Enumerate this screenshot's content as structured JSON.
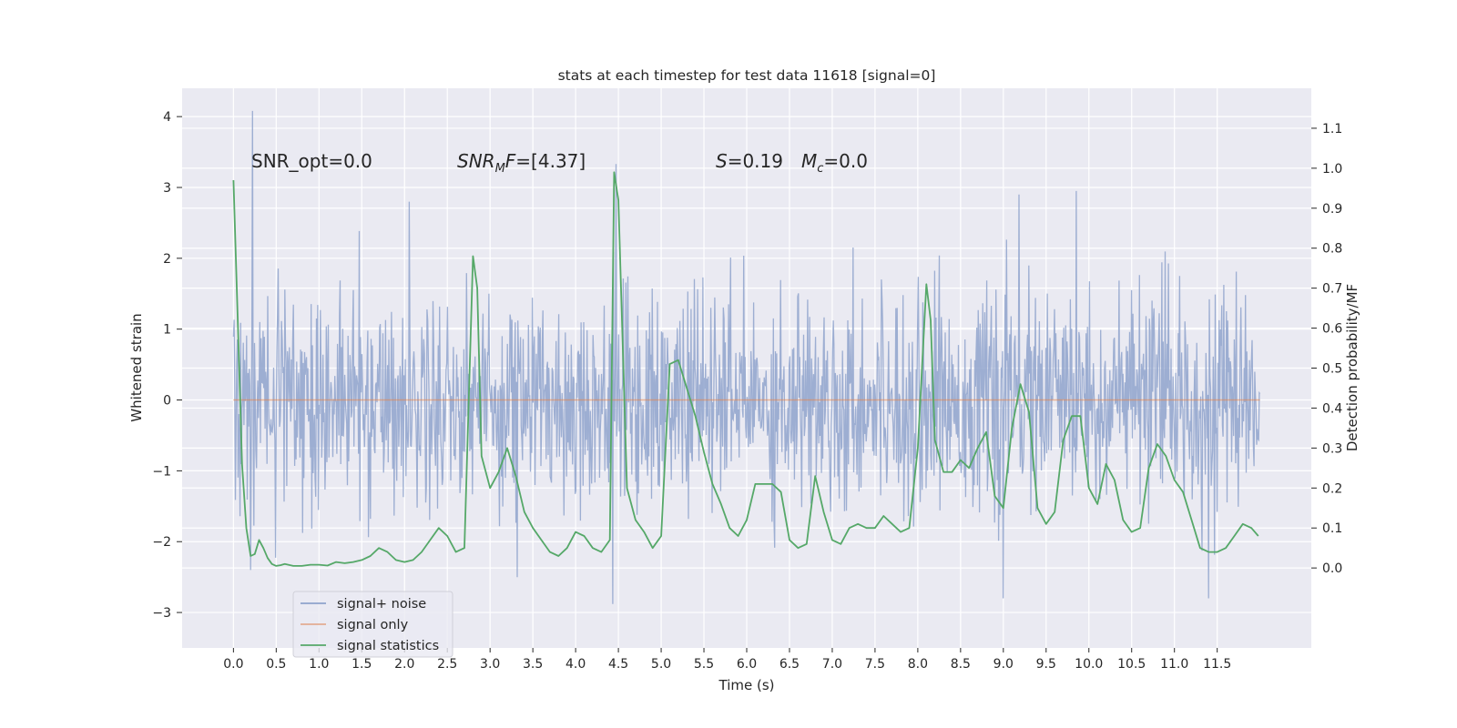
{
  "chart_data": {
    "type": "line",
    "title": "stats at each timestep for test data 11618 [signal=0]",
    "xlabel": "Time (s)",
    "ylabel": "Whitened strain",
    "ylabel_right": "Detection probability/MF",
    "xlim": [
      -0.6,
      12.6
    ],
    "ylim": [
      -3.5,
      4.4
    ],
    "ylim_right": [
      -0.2,
      1.2
    ],
    "xticks": [
      "0.0",
      "0.5",
      "1.0",
      "1.5",
      "2.0",
      "2.5",
      "3.0",
      "3.5",
      "4.0",
      "4.5",
      "5.0",
      "5.5",
      "6.0",
      "6.5",
      "7.0",
      "7.5",
      "8.0",
      "8.5",
      "9.0",
      "9.5",
      "10.0",
      "10.5",
      "11.0",
      "11.5"
    ],
    "yticks": [
      "−3",
      "−2",
      "−1",
      "0",
      "1",
      "2",
      "3",
      "4"
    ],
    "yticks_right": [
      "0.0",
      "0.1",
      "0.2",
      "0.3",
      "0.4",
      "0.5",
      "0.6",
      "0.7",
      "0.8",
      "0.9",
      "1.0",
      "1.1"
    ],
    "grid": true,
    "legend_position": "lower-left",
    "annotations": {
      "snr_opt": "SNR_opt=0.0",
      "snr_mf_name": "SNR",
      "snr_mf_sub": "M",
      "snr_mf_tail": "F",
      "snr_mf_value": "=[4.37]",
      "s_name": "S",
      "s_value": "=0.19",
      "mc_name": "M",
      "mc_sub": "c",
      "mc_value": "=0.0"
    },
    "series": [
      {
        "name": "signal+ noise",
        "color": "#8fa3cc",
        "axis": "left",
        "t_range": [
          0.0,
          12.0
        ],
        "sample_count": 1560,
        "approx_range": [
          -2.9,
          4.1
        ],
        "peaks": [
          [
            0.22,
            4.08
          ],
          [
            4.43,
            -2.88
          ],
          [
            4.47,
            3.33
          ],
          [
            3.32,
            -2.5
          ],
          [
            9.0,
            -2.8
          ],
          [
            9.18,
            2.9
          ],
          [
            9.85,
            2.95
          ],
          [
            11.4,
            -2.8
          ],
          [
            0.2,
            -2.4
          ]
        ]
      },
      {
        "name": "signal only",
        "color": "#dd8452",
        "axis": "left",
        "x": [
          0.0,
          12.0
        ],
        "y": [
          0.0,
          0.0
        ]
      },
      {
        "name": "signal statistics",
        "color": "#55a868",
        "axis": "right",
        "x": [
          0.0,
          0.05,
          0.1,
          0.15,
          0.2,
          0.25,
          0.3,
          0.35,
          0.4,
          0.45,
          0.5,
          0.55,
          0.6,
          0.7,
          0.8,
          0.9,
          1.0,
          1.1,
          1.2,
          1.3,
          1.4,
          1.5,
          1.6,
          1.7,
          1.8,
          1.9,
          2.0,
          2.1,
          2.2,
          2.3,
          2.4,
          2.5,
          2.6,
          2.7,
          2.8,
          2.85,
          2.9,
          3.0,
          3.1,
          3.2,
          3.3,
          3.4,
          3.5,
          3.6,
          3.7,
          3.8,
          3.9,
          4.0,
          4.1,
          4.2,
          4.3,
          4.4,
          4.45,
          4.5,
          4.6,
          4.7,
          4.8,
          4.9,
          5.0,
          5.1,
          5.2,
          5.3,
          5.4,
          5.5,
          5.6,
          5.7,
          5.8,
          5.9,
          6.0,
          6.1,
          6.2,
          6.3,
          6.4,
          6.5,
          6.6,
          6.7,
          6.8,
          6.9,
          7.0,
          7.1,
          7.2,
          7.3,
          7.4,
          7.5,
          7.6,
          7.7,
          7.8,
          7.9,
          8.0,
          8.1,
          8.15,
          8.2,
          8.3,
          8.4,
          8.5,
          8.6,
          8.7,
          8.8,
          8.9,
          9.0,
          9.1,
          9.2,
          9.3,
          9.4,
          9.5,
          9.6,
          9.7,
          9.8,
          9.9,
          10.0,
          10.1,
          10.2,
          10.3,
          10.4,
          10.5,
          10.6,
          10.7,
          10.8,
          10.9,
          11.0,
          11.1,
          11.2,
          11.3,
          11.4,
          11.5,
          11.6,
          11.7,
          11.8,
          11.9,
          11.98
        ],
        "y": [
          0.97,
          0.62,
          0.26,
          0.1,
          0.03,
          0.035,
          0.07,
          0.05,
          0.025,
          0.01,
          0.005,
          0.007,
          0.01,
          0.005,
          0.005,
          0.008,
          0.008,
          0.006,
          0.015,
          0.012,
          0.015,
          0.02,
          0.03,
          0.05,
          0.04,
          0.02,
          0.015,
          0.02,
          0.04,
          0.07,
          0.1,
          0.08,
          0.04,
          0.05,
          0.78,
          0.7,
          0.28,
          0.2,
          0.24,
          0.3,
          0.23,
          0.14,
          0.1,
          0.07,
          0.04,
          0.03,
          0.05,
          0.09,
          0.08,
          0.05,
          0.04,
          0.07,
          0.99,
          0.92,
          0.2,
          0.12,
          0.09,
          0.05,
          0.08,
          0.51,
          0.52,
          0.45,
          0.38,
          0.29,
          0.21,
          0.16,
          0.1,
          0.08,
          0.12,
          0.21,
          0.21,
          0.21,
          0.19,
          0.07,
          0.05,
          0.06,
          0.23,
          0.14,
          0.07,
          0.06,
          0.1,
          0.11,
          0.1,
          0.1,
          0.13,
          0.11,
          0.09,
          0.1,
          0.3,
          0.71,
          0.62,
          0.32,
          0.24,
          0.24,
          0.27,
          0.25,
          0.3,
          0.34,
          0.18,
          0.15,
          0.35,
          0.46,
          0.39,
          0.15,
          0.11,
          0.14,
          0.32,
          0.38,
          0.38,
          0.2,
          0.16,
          0.26,
          0.22,
          0.12,
          0.09,
          0.1,
          0.25,
          0.31,
          0.28,
          0.22,
          0.19,
          0.12,
          0.05,
          0.04,
          0.04,
          0.05,
          0.08,
          0.11,
          0.1,
          0.08
        ]
      }
    ]
  }
}
